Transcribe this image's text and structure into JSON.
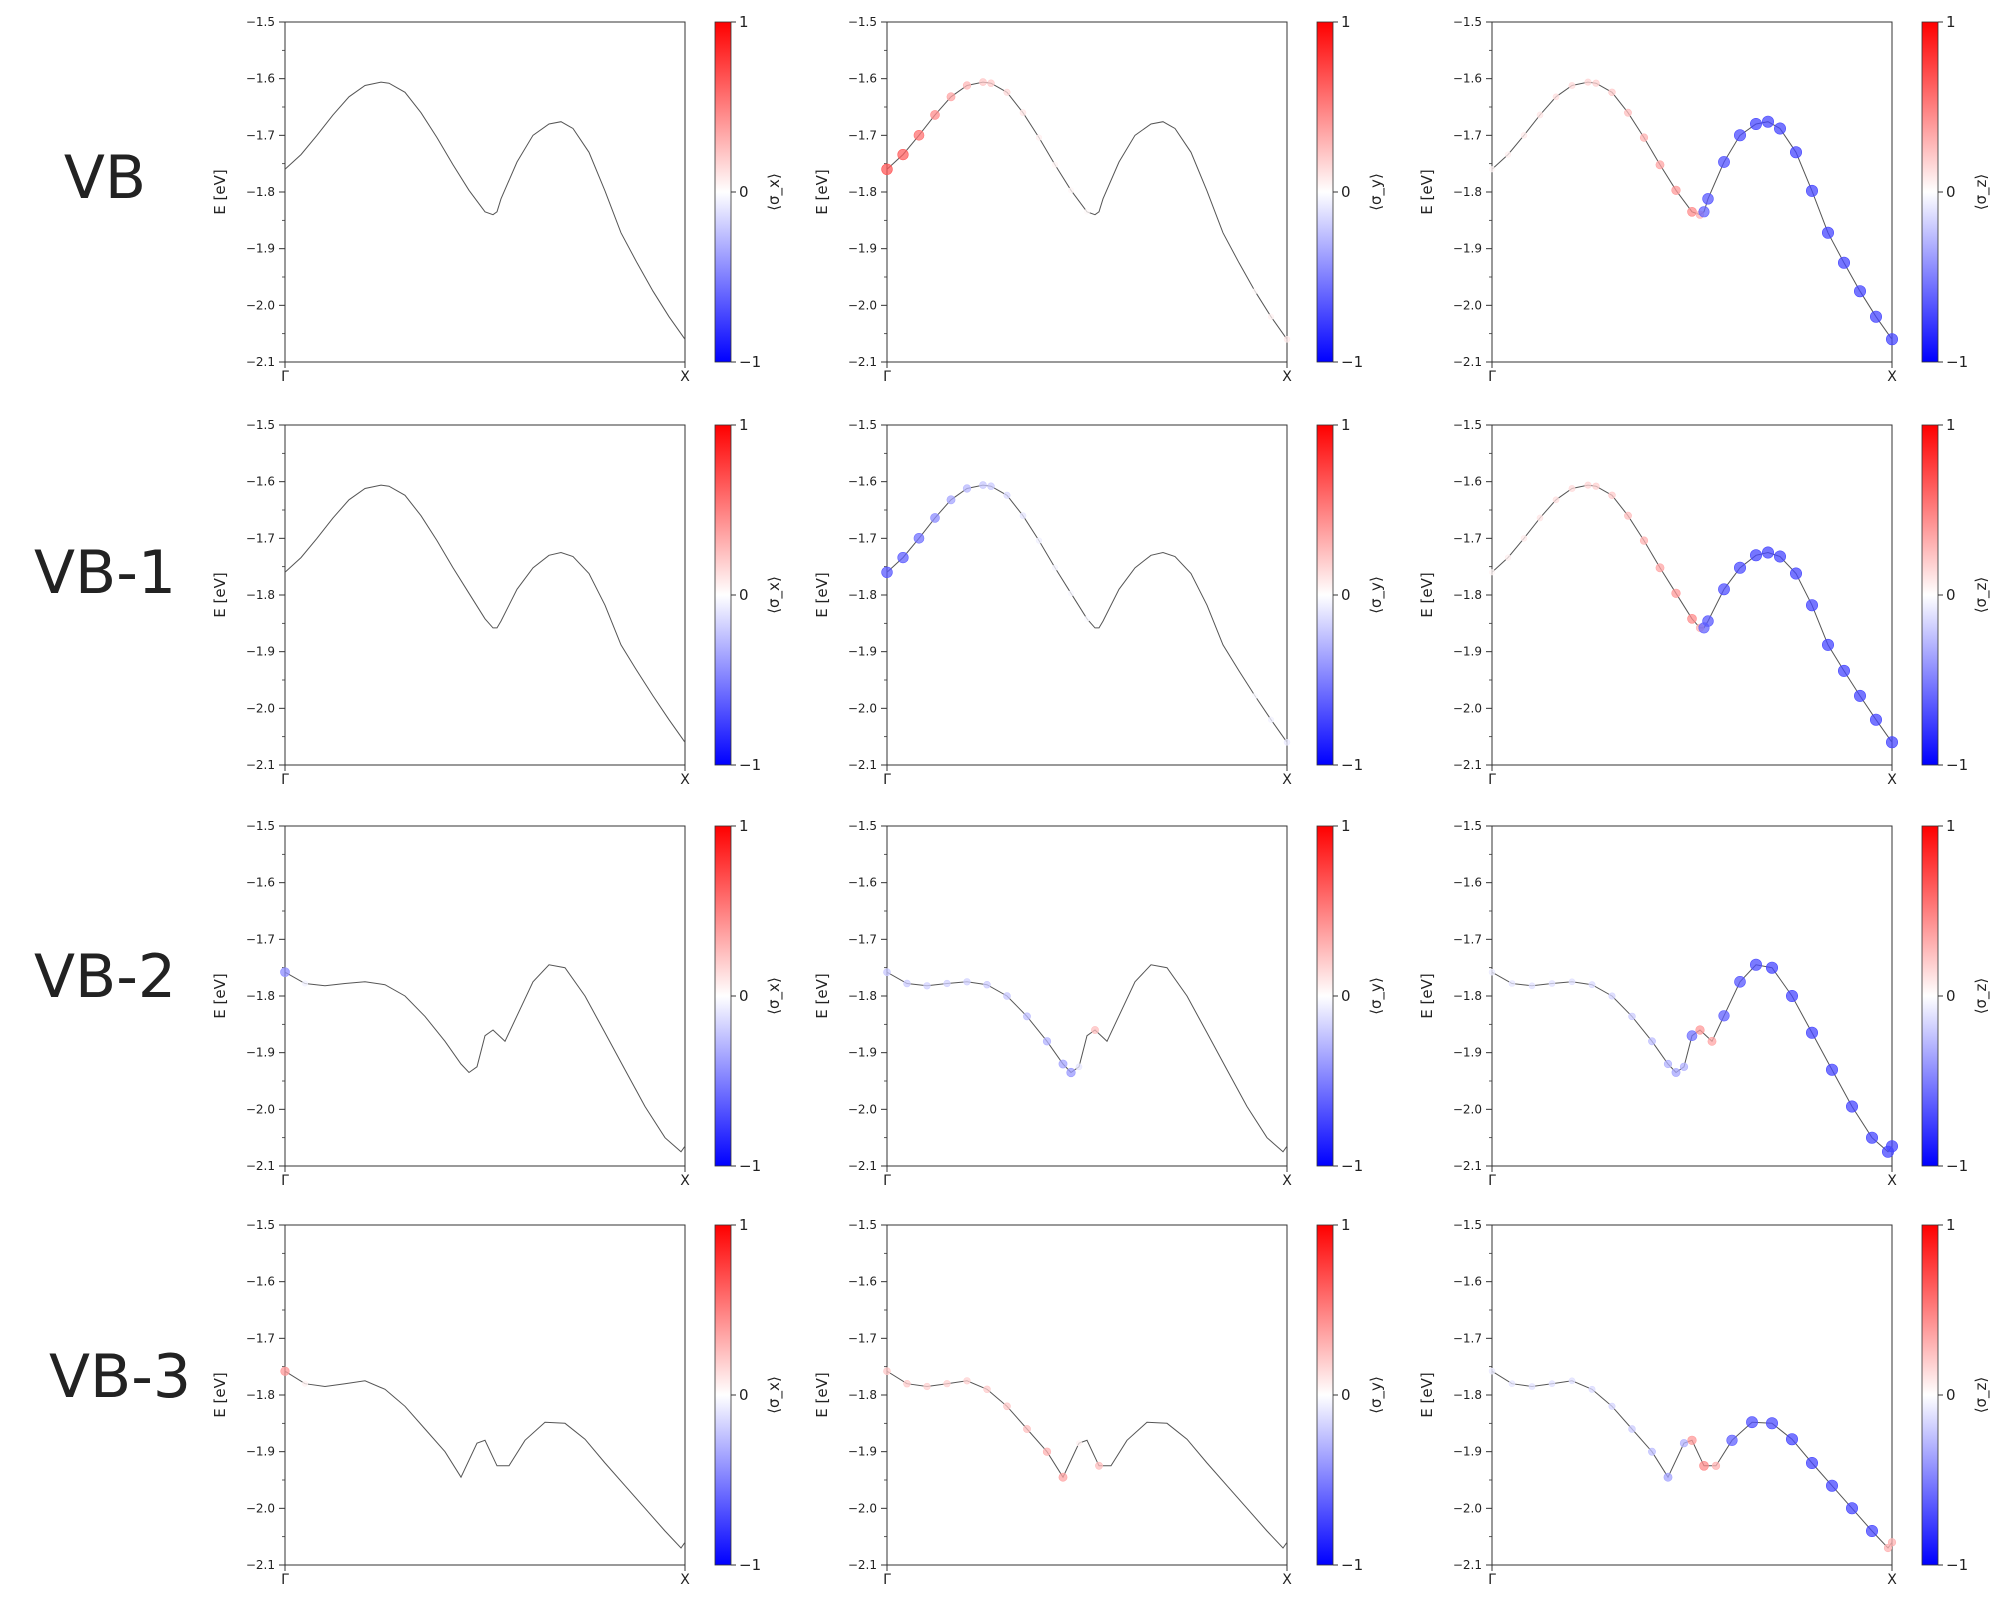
{
  "figure": {
    "row_labels": [
      "VB",
      "VB-1",
      "VB-2",
      "VB-3"
    ],
    "yaxis_label": "E [eV]",
    "ylim": [
      -2.1,
      -1.5
    ],
    "yticks": [
      -1.5,
      -1.6,
      -1.7,
      -1.8,
      -1.9,
      -2.0,
      -2.1
    ],
    "xticks": [
      "Γ",
      "X"
    ],
    "colorbar_ticks": [
      "1",
      "0",
      "−1"
    ],
    "colorbar_labels": [
      "⟨σ_x⟩",
      "⟨σ_y⟩",
      "⟨σ_z⟩"
    ],
    "colormap": {
      "negative": "#0000ff",
      "zero": "#ffffff",
      "positive": "#ff0000"
    },
    "line_color": "#555555"
  },
  "chart_data": [
    {
      "type": "scatter",
      "band": "VB",
      "component": "σx",
      "x": [
        0.0,
        0.04,
        0.08,
        0.12,
        0.16,
        0.2,
        0.24,
        0.26,
        0.3,
        0.34,
        0.38,
        0.42,
        0.46,
        0.5,
        0.52,
        0.53,
        0.54,
        0.58,
        0.62,
        0.66,
        0.69,
        0.72,
        0.76,
        0.8,
        0.84,
        0.88,
        0.92,
        0.96,
        1.0
      ],
      "y": [
        -1.76,
        -1.734,
        -1.7,
        -1.664,
        -1.632,
        -1.612,
        -1.606,
        -1.608,
        -1.624,
        -1.66,
        -1.704,
        -1.752,
        -1.797,
        -1.835,
        -1.84,
        -1.835,
        -1.812,
        -1.747,
        -1.7,
        -1.68,
        -1.676,
        -1.688,
        -1.73,
        -1.798,
        -1.872,
        -1.925,
        -1.975,
        -2.02,
        -2.06
      ],
      "spin": [
        0,
        0,
        0,
        0,
        0,
        0,
        0,
        0,
        0,
        0,
        0,
        0,
        0,
        0,
        0,
        0,
        0,
        0,
        0,
        0,
        0,
        0,
        0,
        0,
        0,
        0,
        0,
        0,
        0
      ]
    },
    {
      "type": "scatter",
      "band": "VB",
      "component": "σy",
      "x": [
        0.0,
        0.04,
        0.08,
        0.12,
        0.16,
        0.2,
        0.24,
        0.26,
        0.3,
        0.34,
        0.38,
        0.42,
        0.46,
        0.5,
        0.52,
        0.53,
        0.54,
        0.58,
        0.62,
        0.66,
        0.69,
        0.72,
        0.76,
        0.8,
        0.84,
        0.88,
        0.92,
        0.96,
        1.0
      ],
      "y": [
        -1.76,
        -1.734,
        -1.7,
        -1.664,
        -1.632,
        -1.612,
        -1.606,
        -1.608,
        -1.624,
        -1.66,
        -1.704,
        -1.752,
        -1.797,
        -1.835,
        -1.84,
        -1.835,
        -1.812,
        -1.747,
        -1.7,
        -1.68,
        -1.676,
        -1.688,
        -1.73,
        -1.798,
        -1.872,
        -1.925,
        -1.975,
        -2.02,
        -2.06
      ],
      "spin": [
        0.65,
        0.62,
        0.55,
        0.45,
        0.35,
        0.28,
        0.22,
        0.2,
        0.15,
        0.1,
        0.06,
        0.04,
        0.03,
        0.02,
        0,
        0,
        0,
        0,
        0,
        0,
        0,
        0,
        0,
        0,
        0,
        0,
        0.02,
        0.05,
        0.08
      ]
    },
    {
      "type": "scatter",
      "band": "VB",
      "component": "σz",
      "x": [
        0.0,
        0.04,
        0.08,
        0.12,
        0.16,
        0.2,
        0.24,
        0.26,
        0.3,
        0.34,
        0.38,
        0.42,
        0.46,
        0.5,
        0.52,
        0.53,
        0.54,
        0.58,
        0.62,
        0.66,
        0.69,
        0.72,
        0.76,
        0.8,
        0.84,
        0.88,
        0.92,
        0.96,
        1.0
      ],
      "y": [
        -1.76,
        -1.734,
        -1.7,
        -1.664,
        -1.632,
        -1.612,
        -1.606,
        -1.608,
        -1.624,
        -1.66,
        -1.704,
        -1.752,
        -1.797,
        -1.835,
        -1.84,
        -1.835,
        -1.812,
        -1.747,
        -1.7,
        -1.68,
        -1.676,
        -1.688,
        -1.73,
        -1.798,
        -1.872,
        -1.925,
        -1.975,
        -2.02,
        -2.06
      ],
      "spin": [
        0.04,
        0.06,
        0.08,
        0.1,
        0.12,
        0.14,
        0.16,
        0.18,
        0.2,
        0.25,
        0.3,
        0.35,
        0.4,
        0.45,
        0.3,
        -0.6,
        -0.65,
        -0.68,
        -0.7,
        -0.72,
        -0.72,
        -0.72,
        -0.72,
        -0.72,
        -0.72,
        -0.72,
        -0.72,
        -0.72,
        -0.72
      ]
    },
    {
      "type": "scatter",
      "band": "VB-1",
      "component": "σx",
      "x": [
        0.0,
        0.04,
        0.08,
        0.12,
        0.16,
        0.2,
        0.24,
        0.26,
        0.3,
        0.34,
        0.38,
        0.42,
        0.46,
        0.5,
        0.52,
        0.53,
        0.54,
        0.58,
        0.62,
        0.66,
        0.69,
        0.72,
        0.76,
        0.8,
        0.84,
        0.88,
        0.92,
        0.96,
        1.0
      ],
      "y": [
        -1.76,
        -1.734,
        -1.7,
        -1.664,
        -1.632,
        -1.612,
        -1.606,
        -1.608,
        -1.624,
        -1.66,
        -1.704,
        -1.752,
        -1.797,
        -1.842,
        -1.858,
        -1.858,
        -1.846,
        -1.79,
        -1.752,
        -1.73,
        -1.725,
        -1.732,
        -1.762,
        -1.818,
        -1.888,
        -1.934,
        -1.978,
        -2.02,
        -2.06
      ],
      "spin": [
        0,
        0,
        0,
        0,
        0,
        0,
        0,
        0,
        0,
        0,
        0,
        0,
        0,
        0,
        0,
        0,
        0,
        0,
        0,
        0,
        0,
        0,
        0,
        0,
        0,
        0,
        0,
        0,
        0
      ]
    },
    {
      "type": "scatter",
      "band": "VB-1",
      "component": "σy",
      "x": [
        0.0,
        0.04,
        0.08,
        0.12,
        0.16,
        0.2,
        0.24,
        0.26,
        0.3,
        0.34,
        0.38,
        0.42,
        0.46,
        0.5,
        0.52,
        0.53,
        0.54,
        0.58,
        0.62,
        0.66,
        0.69,
        0.72,
        0.76,
        0.8,
        0.84,
        0.88,
        0.92,
        0.96,
        1.0
      ],
      "y": [
        -1.76,
        -1.734,
        -1.7,
        -1.664,
        -1.632,
        -1.612,
        -1.606,
        -1.608,
        -1.624,
        -1.66,
        -1.704,
        -1.752,
        -1.797,
        -1.842,
        -1.858,
        -1.858,
        -1.846,
        -1.79,
        -1.752,
        -1.73,
        -1.725,
        -1.732,
        -1.762,
        -1.818,
        -1.888,
        -1.934,
        -1.978,
        -2.02,
        -2.06
      ],
      "spin": [
        -0.65,
        -0.62,
        -0.55,
        -0.45,
        -0.35,
        -0.28,
        -0.22,
        -0.2,
        -0.15,
        -0.1,
        -0.06,
        -0.04,
        -0.03,
        -0.02,
        0,
        0,
        0,
        0,
        0,
        0,
        0,
        0,
        0,
        0,
        0,
        0,
        -0.02,
        -0.05,
        -0.08
      ]
    },
    {
      "type": "scatter",
      "band": "VB-1",
      "component": "σz",
      "x": [
        0.0,
        0.04,
        0.08,
        0.12,
        0.16,
        0.2,
        0.24,
        0.26,
        0.3,
        0.34,
        0.38,
        0.42,
        0.46,
        0.5,
        0.52,
        0.53,
        0.54,
        0.58,
        0.62,
        0.66,
        0.69,
        0.72,
        0.76,
        0.8,
        0.84,
        0.88,
        0.92,
        0.96,
        1.0
      ],
      "y": [
        -1.76,
        -1.734,
        -1.7,
        -1.664,
        -1.632,
        -1.612,
        -1.606,
        -1.608,
        -1.624,
        -1.66,
        -1.704,
        -1.752,
        -1.797,
        -1.842,
        -1.858,
        -1.858,
        -1.846,
        -1.79,
        -1.752,
        -1.73,
        -1.725,
        -1.732,
        -1.762,
        -1.818,
        -1.888,
        -1.934,
        -1.978,
        -2.02,
        -2.06
      ],
      "spin": [
        0.04,
        0.06,
        0.08,
        0.1,
        0.12,
        0.14,
        0.16,
        0.18,
        0.2,
        0.25,
        0.3,
        0.35,
        0.4,
        0.45,
        0.3,
        -0.6,
        -0.65,
        -0.68,
        -0.7,
        -0.72,
        -0.72,
        -0.72,
        -0.72,
        -0.72,
        -0.72,
        -0.72,
        -0.72,
        -0.72,
        -0.72
      ]
    },
    {
      "type": "scatter",
      "band": "VB-2",
      "component": "σx",
      "x": [
        0.0,
        0.05,
        0.1,
        0.15,
        0.2,
        0.25,
        0.3,
        0.35,
        0.4,
        0.44,
        0.46,
        0.48,
        0.5,
        0.52,
        0.55,
        0.58,
        0.62,
        0.66,
        0.7,
        0.75,
        0.8,
        0.85,
        0.9,
        0.95,
        0.99,
        1.0
      ],
      "y": [
        -1.758,
        -1.778,
        -1.782,
        -1.778,
        -1.775,
        -1.78,
        -1.8,
        -1.836,
        -1.88,
        -1.92,
        -1.935,
        -1.925,
        -1.87,
        -1.86,
        -1.88,
        -1.835,
        -1.775,
        -1.745,
        -1.75,
        -1.8,
        -1.865,
        -1.93,
        -1.995,
        -2.05,
        -2.075,
        -2.065
      ],
      "spin": [
        -0.45,
        -0.05,
        0,
        0,
        0,
        0,
        0,
        0,
        0,
        0,
        0,
        0,
        0,
        0,
        0,
        0,
        0,
        0,
        0,
        0,
        0,
        0,
        0,
        0,
        0,
        0
      ]
    },
    {
      "type": "scatter",
      "band": "VB-2",
      "component": "σy",
      "x": [
        0.0,
        0.05,
        0.1,
        0.15,
        0.2,
        0.25,
        0.3,
        0.35,
        0.4,
        0.44,
        0.46,
        0.48,
        0.5,
        0.52,
        0.55,
        0.58,
        0.62,
        0.66,
        0.7,
        0.75,
        0.8,
        0.85,
        0.9,
        0.95,
        0.99,
        1.0
      ],
      "y": [
        -1.758,
        -1.778,
        -1.782,
        -1.778,
        -1.775,
        -1.78,
        -1.8,
        -1.836,
        -1.88,
        -1.92,
        -1.935,
        -1.925,
        -1.87,
        -1.86,
        -1.88,
        -1.835,
        -1.775,
        -1.745,
        -1.75,
        -1.8,
        -1.865,
        -1.93,
        -1.995,
        -2.05,
        -2.075,
        -2.065
      ],
      "spin": [
        -0.22,
        -0.2,
        -0.18,
        -0.18,
        -0.18,
        -0.2,
        -0.22,
        -0.25,
        -0.3,
        -0.35,
        -0.4,
        -0.1,
        0,
        0.25,
        0,
        0,
        0,
        0,
        0,
        0,
        0,
        0,
        0,
        0,
        0,
        0
      ]
    },
    {
      "type": "scatter",
      "band": "VB-2",
      "component": "σz",
      "x": [
        0.0,
        0.05,
        0.1,
        0.15,
        0.2,
        0.25,
        0.3,
        0.35,
        0.4,
        0.44,
        0.46,
        0.48,
        0.5,
        0.52,
        0.55,
        0.58,
        0.62,
        0.66,
        0.7,
        0.75,
        0.8,
        0.85,
        0.9,
        0.95,
        0.99,
        1.0
      ],
      "y": [
        -1.758,
        -1.778,
        -1.782,
        -1.778,
        -1.775,
        -1.78,
        -1.8,
        -1.836,
        -1.88,
        -1.92,
        -1.935,
        -1.925,
        -1.87,
        -1.86,
        -1.88,
        -1.835,
        -1.775,
        -1.745,
        -1.75,
        -1.8,
        -1.865,
        -1.93,
        -1.995,
        -2.05,
        -2.075,
        -2.065
      ],
      "spin": [
        -0.08,
        -0.1,
        -0.12,
        -0.12,
        -0.12,
        -0.14,
        -0.16,
        -0.2,
        -0.25,
        -0.3,
        -0.35,
        -0.3,
        -0.55,
        0.4,
        0.35,
        -0.62,
        -0.66,
        -0.7,
        -0.72,
        -0.72,
        -0.72,
        -0.72,
        -0.72,
        -0.72,
        -0.72,
        -0.72
      ]
    },
    {
      "type": "scatter",
      "band": "VB-3",
      "component": "σx",
      "x": [
        0.0,
        0.05,
        0.1,
        0.15,
        0.2,
        0.25,
        0.3,
        0.35,
        0.4,
        0.44,
        0.48,
        0.5,
        0.53,
        0.56,
        0.6,
        0.65,
        0.7,
        0.75,
        0.8,
        0.85,
        0.9,
        0.95,
        0.99,
        1.0
      ],
      "y": [
        -1.758,
        -1.78,
        -1.785,
        -1.78,
        -1.775,
        -1.79,
        -1.82,
        -1.86,
        -1.9,
        -1.945,
        -1.885,
        -1.88,
        -1.925,
        -1.925,
        -1.88,
        -1.848,
        -1.85,
        -1.878,
        -1.92,
        -1.96,
        -2.0,
        -2.04,
        -2.07,
        -2.06
      ],
      "spin": [
        0.4,
        0.05,
        0,
        0,
        0,
        0,
        0,
        0,
        0,
        0,
        0,
        0,
        0,
        0,
        0,
        0,
        0,
        0,
        0,
        0,
        0,
        0,
        0,
        0
      ]
    },
    {
      "type": "scatter",
      "band": "VB-3",
      "component": "σy",
      "x": [
        0.0,
        0.05,
        0.1,
        0.15,
        0.2,
        0.25,
        0.3,
        0.35,
        0.4,
        0.44,
        0.48,
        0.5,
        0.53,
        0.56,
        0.6,
        0.65,
        0.7,
        0.75,
        0.8,
        0.85,
        0.9,
        0.95,
        0.99,
        1.0
      ],
      "y": [
        -1.758,
        -1.78,
        -1.785,
        -1.78,
        -1.775,
        -1.79,
        -1.82,
        -1.86,
        -1.9,
        -1.945,
        -1.885,
        -1.88,
        -1.925,
        -1.925,
        -1.88,
        -1.848,
        -1.85,
        -1.878,
        -1.92,
        -1.96,
        -2.0,
        -2.04,
        -2.07,
        -2.06
      ],
      "spin": [
        0.22,
        0.2,
        0.18,
        0.18,
        0.18,
        0.2,
        0.22,
        0.25,
        0.3,
        0.35,
        0.05,
        0,
        0.25,
        0,
        0,
        0,
        0,
        0,
        0,
        0,
        0,
        0,
        0,
        0
      ]
    },
    {
      "type": "scatter",
      "band": "VB-3",
      "component": "σz",
      "x": [
        0.0,
        0.05,
        0.1,
        0.15,
        0.2,
        0.25,
        0.3,
        0.35,
        0.4,
        0.44,
        0.48,
        0.5,
        0.53,
        0.56,
        0.6,
        0.65,
        0.7,
        0.75,
        0.8,
        0.85,
        0.9,
        0.95,
        0.99,
        1.0
      ],
      "y": [
        -1.758,
        -1.78,
        -1.785,
        -1.78,
        -1.775,
        -1.79,
        -1.82,
        -1.86,
        -1.9,
        -1.945,
        -1.885,
        -1.88,
        -1.925,
        -1.925,
        -1.88,
        -1.848,
        -1.85,
        -1.878,
        -1.92,
        -1.96,
        -2.0,
        -2.04,
        -2.07,
        -2.06
      ],
      "spin": [
        -0.08,
        -0.1,
        -0.12,
        -0.12,
        -0.12,
        -0.14,
        -0.16,
        -0.2,
        -0.25,
        -0.35,
        -0.3,
        0.4,
        0.45,
        0.3,
        -0.62,
        -0.68,
        -0.7,
        -0.72,
        -0.72,
        -0.72,
        -0.72,
        -0.72,
        0.3,
        0.3
      ]
    }
  ]
}
